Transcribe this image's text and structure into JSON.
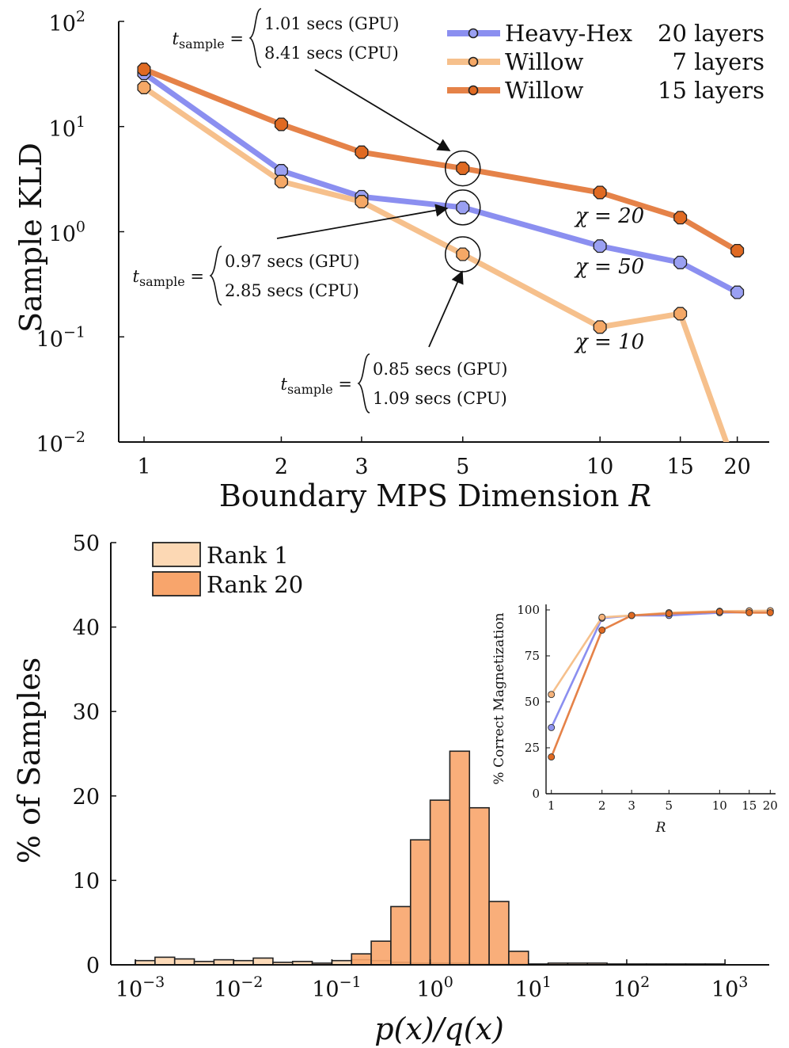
{
  "chart_data": [
    {
      "type": "line",
      "scale": {
        "x": "log",
        "y": "log"
      },
      "xlabel": "Boundary MPS Dimension R",
      "ylabel": "Sample KLD",
      "xlim": [
        0.88,
        23.5
      ],
      "ylim": [
        0.01,
        100
      ],
      "xticks": [
        1,
        2,
        3,
        5,
        10,
        15,
        20
      ],
      "xtick_labels": [
        "1",
        "2",
        "3",
        "5",
        "10",
        "15",
        "20"
      ],
      "yticks": [
        0.01,
        0.1,
        1,
        10,
        100
      ],
      "ytick_labels": [
        {
          "base": "10",
          "exp": "−2"
        },
        {
          "base": "10",
          "exp": "−1"
        },
        {
          "base": "10",
          "exp": "0"
        },
        {
          "base": "10",
          "exp": "1"
        },
        {
          "base": "10",
          "exp": "2"
        }
      ],
      "series": [
        {
          "name": "Heavy-Hex",
          "layers": "20 layers",
          "color": "#8b8ff0",
          "marker_color": "#9aa0f2",
          "x": [
            1,
            2,
            3,
            5,
            10,
            15,
            20
          ],
          "y": [
            32,
            3.8,
            2.15,
            1.7,
            0.73,
            0.51,
            0.265
          ]
        },
        {
          "name": "Willow",
          "layers": "7 layers",
          "color": "#f6c08c",
          "marker_color": "#f5a866",
          "x": [
            1,
            2,
            3,
            5,
            10,
            15,
            19
          ],
          "y": [
            23.5,
            3.0,
            1.93,
            0.61,
            0.124,
            0.166,
            0.0095
          ]
        },
        {
          "name": "Willow",
          "layers": "15 layers",
          "color": "#e58248",
          "marker_color": "#e06a22",
          "x": [
            1,
            2,
            3,
            5,
            10,
            15,
            20
          ],
          "y": [
            35,
            10.5,
            5.7,
            4.0,
            2.36,
            1.36,
            0.66
          ]
        }
      ],
      "annotations": [
        {
          "lhs": "t",
          "sub": "sample",
          "lines": [
            "1.01 secs (GPU)",
            "8.41 secs (CPU)"
          ]
        },
        {
          "lhs": "t",
          "sub": "sample",
          "lines": [
            "0.97 secs (GPU)",
            "2.85 secs (CPU)"
          ]
        },
        {
          "lhs": "t",
          "sub": "sample",
          "lines": [
            "0.85 secs (GPU)",
            "1.09 secs (CPU)"
          ]
        }
      ],
      "chi_labels": [
        "χ = 20",
        "χ = 50",
        "χ = 10"
      ]
    },
    {
      "type": "bar",
      "scale": {
        "x": "log",
        "y": "linear"
      },
      "xlabel": "p(x)/q(x)",
      "ylabel": "% of Samples",
      "xlim_log10": [
        -3.25,
        3.45
      ],
      "ylim": [
        0,
        50
      ],
      "yticks": [
        0,
        10,
        20,
        30,
        40,
        50
      ],
      "xticks_exp": [
        "−3",
        "−2",
        "−1",
        "0",
        "1",
        "2",
        "3"
      ],
      "xtick_base": "10",
      "bin_edges_log10": [
        -3.0,
        -2.8,
        -2.6,
        -2.4,
        -2.2,
        -2.0,
        -1.8,
        -1.6,
        -1.4,
        -1.2,
        -1.0,
        -0.8,
        -0.6,
        -0.4,
        -0.2,
        0.0,
        0.2,
        0.4,
        0.6,
        0.8,
        1.0,
        1.2,
        1.4,
        1.6,
        1.8,
        2.0,
        2.2,
        2.4,
        2.6,
        2.8,
        3.0
      ],
      "series": [
        {
          "name": "Rank 1",
          "color": "#fcd8b4",
          "values": [
            0.5,
            0.9,
            0.7,
            0.4,
            0.6,
            0.5,
            0.8,
            0.3,
            0.4,
            0.2,
            0.5,
            0.6,
            0.5,
            0.3,
            0.2,
            0.2,
            0.2,
            0.1,
            0.1,
            0.1,
            0.1,
            0.2,
            0.2,
            0.2,
            0.1,
            0.1,
            0.1,
            0.1,
            0.1,
            0.1
          ]
        },
        {
          "name": "Rank 20",
          "color": "#f8a56c",
          "values": [
            0,
            0,
            0,
            0,
            0,
            0,
            0,
            0,
            0,
            0,
            0,
            1.3,
            2.8,
            6.9,
            14.8,
            19.5,
            25.3,
            18.6,
            7.5,
            1.6,
            0.05,
            0,
            0,
            0,
            0,
            0,
            0,
            0,
            0,
            0
          ]
        }
      ],
      "legend": [
        "Rank 1",
        "Rank 20"
      ]
    },
    {
      "type": "line",
      "inset": true,
      "scale": {
        "x": "log",
        "y": "linear"
      },
      "xlabel": "R",
      "ylabel": "% Correct Magnetization",
      "xticks": [
        1,
        2,
        3,
        5,
        10,
        15,
        20
      ],
      "xtick_labels": [
        "1",
        "2",
        "3",
        "5",
        "10",
        "15",
        "20"
      ],
      "yticks": [
        0,
        25,
        50,
        75,
        100
      ],
      "ylim": [
        0,
        103
      ],
      "series": [
        {
          "name": "Heavy-Hex 20 layers",
          "color": "#8b8ff0",
          "x": [
            1,
            2,
            3,
            5,
            10,
            15,
            20
          ],
          "y": [
            36,
            95.5,
            97,
            97,
            98.5,
            98.8,
            99
          ]
        },
        {
          "name": "Willow 7 layers",
          "color": "#f6c08c",
          "x": [
            1,
            2,
            3,
            5,
            10,
            15,
            20
          ],
          "y": [
            54,
            96,
            97,
            98.5,
            99.3,
            99.5,
            99.6
          ]
        },
        {
          "name": "Willow 15 layers",
          "color": "#e58248",
          "x": [
            1,
            2,
            3,
            5,
            10,
            15,
            20
          ],
          "y": [
            20,
            89,
            97,
            98,
            99,
            98.5,
            98.5
          ]
        }
      ]
    }
  ]
}
